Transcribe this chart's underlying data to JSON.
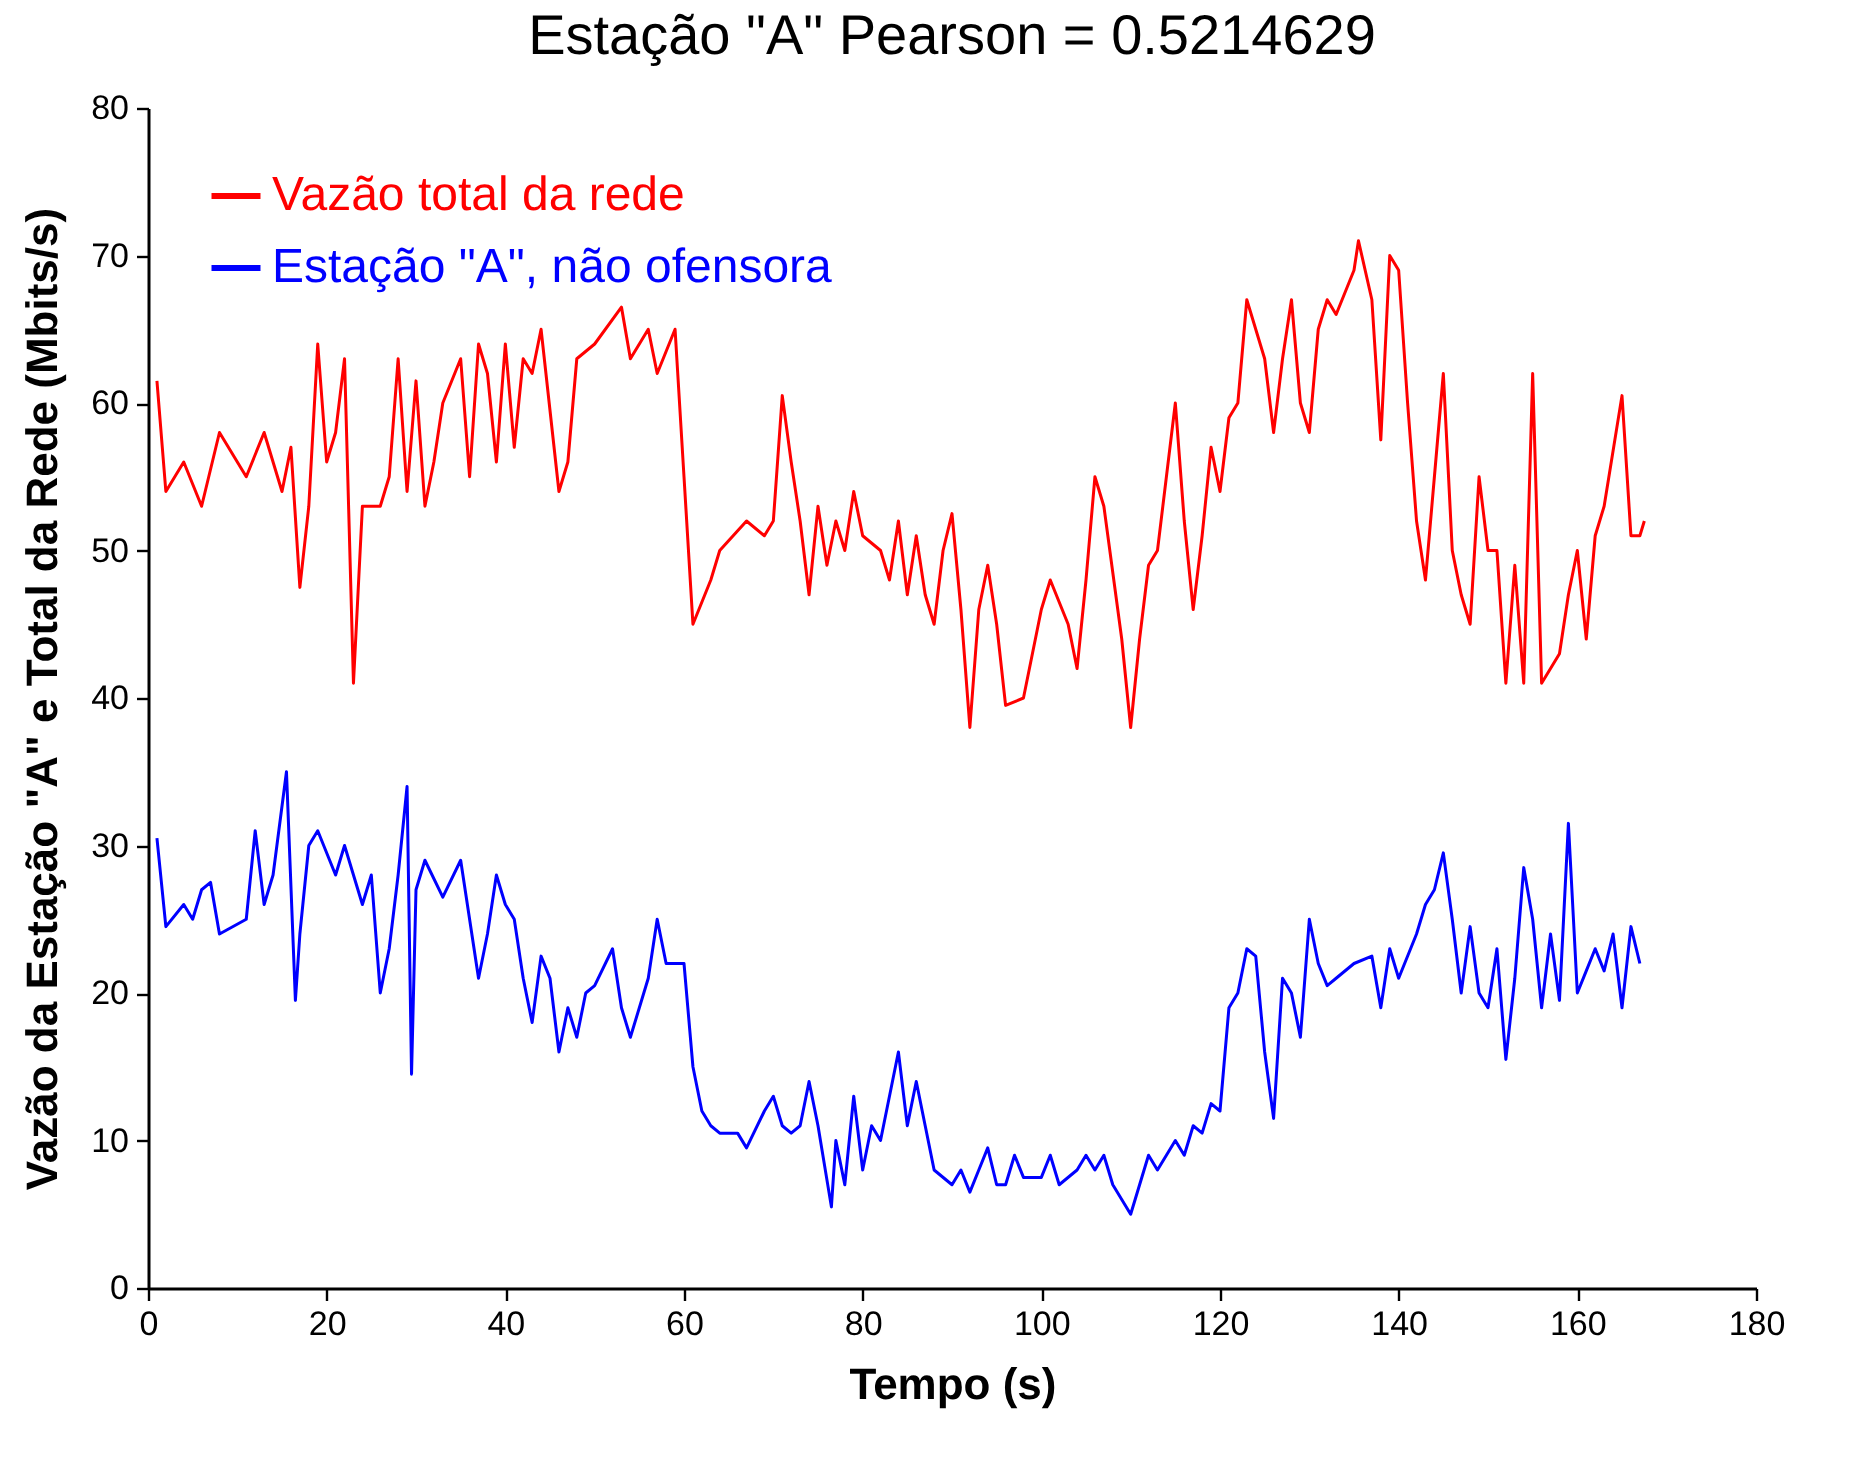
{
  "chart_data": {
    "type": "line",
    "title": "Estação \"A\" Pearson = 0.5214629",
    "xlabel": "Tempo (s)",
    "ylabel": "Vazão da Estação \"A\" e Total da Rede (Mbits/s)",
    "xlim": [
      0,
      180
    ],
    "xticks": [
      0,
      20,
      40,
      60,
      80,
      100,
      120,
      140,
      160,
      180
    ],
    "ylim": [
      0,
      80
    ],
    "yticks": [
      0,
      10,
      20,
      30,
      40,
      50,
      60,
      70,
      80
    ],
    "grid": false,
    "legend": "top left",
    "series": [
      {
        "name": "Vazão total da rede",
        "color": "#ff0000",
        "x": [
          1,
          2,
          4,
          6,
          8,
          11,
          13,
          15,
          16,
          17,
          18,
          19,
          20,
          21,
          22,
          23,
          24,
          26,
          27,
          28,
          29,
          30,
          31,
          32,
          33,
          35,
          36,
          37,
          38,
          39,
          40,
          41,
          42,
          43,
          44,
          46,
          47,
          48,
          50,
          53,
          54,
          56,
          57,
          59,
          60,
          61,
          63,
          64,
          67,
          69,
          70,
          71,
          72,
          73,
          74,
          75,
          76,
          77,
          78,
          79,
          80,
          82,
          83,
          84,
          85,
          86,
          87,
          88,
          89,
          90,
          91,
          92,
          93,
          94,
          95,
          96,
          98,
          100,
          101,
          103,
          104,
          105,
          106,
          107,
          109,
          110,
          111,
          112,
          113,
          115,
          116,
          117,
          118,
          119,
          120,
          121,
          122,
          123,
          125,
          126,
          127,
          128,
          129,
          130,
          131,
          132,
          133,
          135,
          135.5,
          137,
          138,
          139,
          140,
          141,
          142,
          143,
          144,
          145,
          146,
          147,
          148,
          149,
          150,
          151,
          152,
          153,
          154,
          155,
          156,
          158,
          159,
          160,
          161,
          162,
          163,
          165,
          166,
          167,
          167.5
        ],
        "values": [
          61.5,
          54,
          56,
          53,
          58,
          55,
          58,
          54,
          57,
          47.5,
          53,
          64,
          56,
          58,
          63,
          41,
          53,
          53,
          55,
          63,
          54,
          61.5,
          53,
          56,
          60,
          63,
          55,
          64,
          62,
          56,
          64,
          57,
          63,
          62,
          65,
          54,
          56,
          63,
          64,
          66.5,
          63,
          65,
          62,
          65,
          55,
          45,
          48,
          50,
          52,
          51,
          52,
          60.5,
          56,
          52,
          47,
          53,
          49,
          52,
          50,
          54,
          51,
          50,
          48,
          52,
          47,
          51,
          47,
          45,
          50,
          52.5,
          46,
          38,
          46,
          49,
          45,
          39.5,
          40,
          46,
          48,
          45,
          42,
          48,
          55,
          53,
          44,
          38,
          44,
          49,
          50,
          60,
          52,
          46,
          51,
          57,
          54,
          59,
          60,
          67,
          63,
          58,
          63,
          67,
          60,
          58,
          65,
          67,
          66,
          69,
          71,
          67,
          57.5,
          70,
          69,
          60,
          52,
          48,
          55,
          62,
          50,
          47,
          45,
          55,
          50,
          50,
          41,
          49,
          41,
          62,
          41,
          43,
          47,
          50,
          44,
          51,
          53,
          60.5,
          51,
          51,
          52
        ]
      },
      {
        "name": "Estação \"A\", não ofensora",
        "color": "#0000ff",
        "x": [
          1,
          2,
          4,
          5,
          6,
          7,
          8,
          11,
          12,
          13,
          14,
          15.5,
          16.5,
          17,
          18,
          19,
          21,
          22,
          24,
          25,
          26,
          27,
          28,
          29,
          29.5,
          30,
          31,
          33,
          35,
          37,
          38,
          39,
          40,
          41,
          42,
          43,
          44,
          45,
          46,
          47,
          48,
          49,
          50,
          52,
          53,
          54,
          56,
          57,
          58,
          60,
          61,
          62,
          63,
          64,
          66,
          67,
          69,
          70,
          71,
          72,
          73,
          74,
          75,
          76.5,
          77,
          78,
          79,
          80,
          81,
          82,
          84,
          85,
          86,
          87,
          88,
          90,
          91,
          92,
          93,
          94,
          95,
          96,
          97,
          98,
          100,
          101,
          102,
          104,
          105,
          106,
          107,
          108,
          110,
          111,
          112,
          113,
          115,
          116,
          117,
          118,
          119,
          120,
          121,
          122,
          123,
          124,
          125,
          126,
          127,
          128,
          129,
          130,
          131,
          132,
          133,
          135,
          137,
          138,
          139,
          140,
          142,
          143,
          144,
          145,
          146,
          147,
          148,
          149,
          150,
          151,
          152,
          153,
          154,
          155,
          156,
          157,
          158,
          159,
          160,
          161,
          162,
          163,
          164,
          165,
          166,
          167
        ],
        "values": [
          30.5,
          24.5,
          26,
          25,
          27,
          27.5,
          24,
          25,
          31,
          26,
          28,
          35,
          19.5,
          24,
          30,
          31,
          28,
          30,
          26,
          28,
          20,
          23,
          28,
          34,
          14.5,
          27,
          29,
          26.5,
          29,
          21,
          24,
          28,
          26,
          25,
          21,
          18,
          22.5,
          21,
          16,
          19,
          17,
          20,
          20.5,
          23,
          19,
          17,
          21,
          25,
          22,
          22,
          15,
          12,
          11,
          10.5,
          10.5,
          9.5,
          12,
          13,
          11,
          10.5,
          11,
          14,
          11,
          5.5,
          10,
          7,
          13,
          8,
          11,
          10,
          16,
          11,
          14,
          11,
          8,
          7,
          8,
          6.5,
          8,
          9.5,
          7,
          7,
          9,
          7.5,
          7.5,
          9,
          7,
          8,
          9,
          8,
          9,
          7,
          5,
          7,
          9,
          8,
          10,
          9,
          11,
          10.5,
          12.5,
          12,
          19,
          20,
          23,
          22.5,
          16,
          11.5,
          21,
          20,
          17,
          25,
          22,
          20.5,
          21,
          22,
          22.5,
          19,
          23,
          21,
          24,
          26,
          27,
          29.5,
          25,
          20,
          24.5,
          20,
          19,
          23,
          15.5,
          21,
          28.5,
          25,
          19,
          24,
          19.5,
          31.5,
          20,
          21.5,
          23,
          21.5,
          24,
          19,
          24.5,
          22
        ]
      }
    ]
  }
}
